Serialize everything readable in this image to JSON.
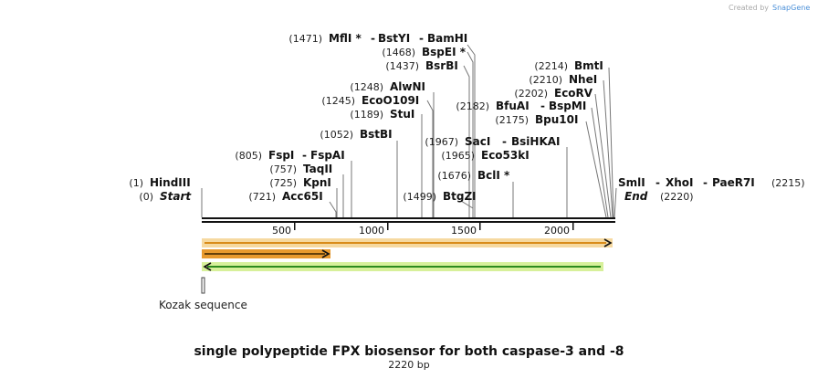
{
  "title": "single polypeptide FPX biosensor for both caspase-3 and -8",
  "length_label": "2220 bp",
  "credit": {
    "prefix": "Created by",
    "brand": "SnapGene"
  },
  "ruler_ticks": [
    "500",
    "1000",
    "1500",
    "2000"
  ],
  "feature_label": "Kozak sequence",
  "sites": {
    "s1471": {
      "pos": "(1471)",
      "names": [
        "MflI *",
        "BstYI",
        "BamHI"
      ]
    },
    "s1468": {
      "pos": "(1468)",
      "names": [
        "BspEI *"
      ]
    },
    "s1437": {
      "pos": "(1437)",
      "names": [
        "BsrBI"
      ]
    },
    "s1248": {
      "pos": "(1248)",
      "names": [
        "AlwNI"
      ]
    },
    "s1245": {
      "pos": "(1245)",
      "names": [
        "EcoO109I"
      ]
    },
    "s1189": {
      "pos": "(1189)",
      "names": [
        "StuI"
      ]
    },
    "s1052": {
      "pos": "(1052)",
      "names": [
        "BstBI"
      ]
    },
    "s805": {
      "pos": "(805)",
      "names": [
        "FspI",
        "FspAI"
      ]
    },
    "s757": {
      "pos": "(757)",
      "names": [
        "TaqII"
      ]
    },
    "s725": {
      "pos": "(725)",
      "names": [
        "KpnI"
      ]
    },
    "s721": {
      "pos": "(721)",
      "names": [
        "Acc65I"
      ]
    },
    "s1": {
      "pos": "(1)",
      "names": [
        "HindIII"
      ]
    },
    "s0": {
      "pos": "(0)",
      "names": [
        "Start"
      ]
    },
    "s1499": {
      "pos": "(1499)",
      "names": [
        "BtgZI"
      ]
    },
    "s1676": {
      "pos": "(1676)",
      "names": [
        "BclI *"
      ]
    },
    "s1965": {
      "pos": "(1965)",
      "names": [
        "Eco53kI"
      ]
    },
    "s1967": {
      "pos": "(1967)",
      "names": [
        "SacI",
        "BsiHKAI"
      ]
    },
    "s2182": {
      "pos": "(2182)",
      "names": [
        "BfuAI",
        "BspMI"
      ]
    },
    "s2175": {
      "pos": "(2175)",
      "names": [
        "Bpu10I"
      ]
    },
    "s2202": {
      "pos": "(2202)",
      "names": [
        "EcoRV"
      ]
    },
    "s2210": {
      "pos": "(2210)",
      "names": [
        "NheI"
      ]
    },
    "s2214": {
      "pos": "(2214)",
      "names": [
        "BmtI"
      ]
    },
    "s2215": {
      "pos": "(2215)",
      "names": [
        "SmlI",
        "XhoI",
        "PaeR7I"
      ]
    },
    "s2220": {
      "pos": "(2220)",
      "names": [
        "End"
      ]
    }
  },
  "colors": {
    "orange_feature": "#f5a623",
    "orange_outline": "#f6d9a0",
    "green_feature": "#2e8b1e",
    "green_outline": "#d7f09a"
  }
}
